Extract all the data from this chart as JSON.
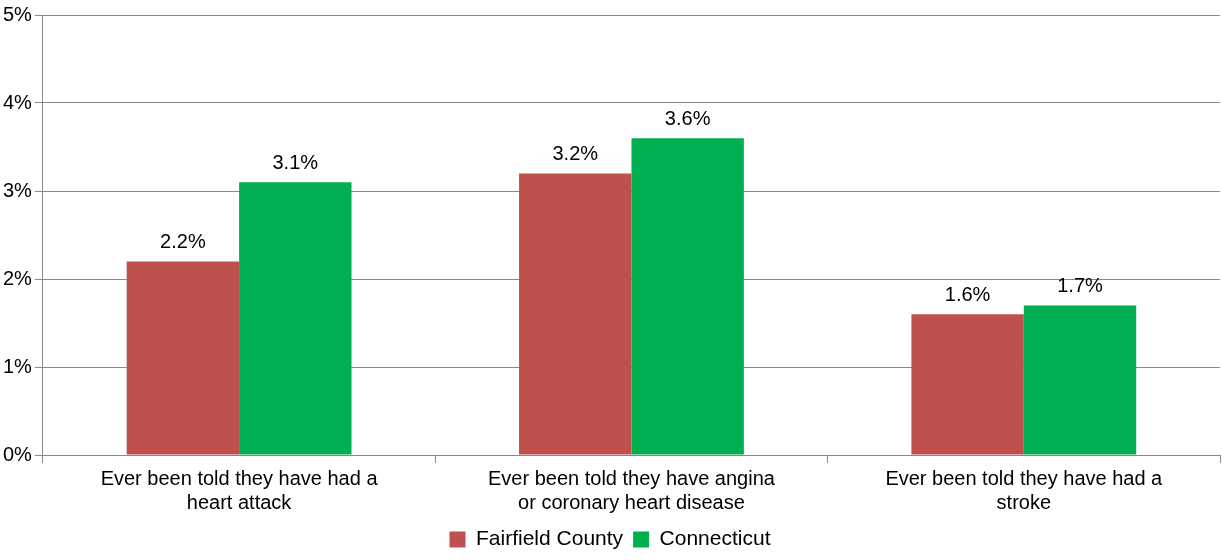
{
  "chart_data": {
    "type": "bar",
    "categories": [
      "Ever been told they have had a heart attack",
      "Ever been told they have angina or coronary heart disease",
      "Ever been told they have had a stroke"
    ],
    "series": [
      {
        "name": "Fairfield County",
        "color": "#c0504d",
        "values": [
          2.2,
          3.2,
          1.6
        ],
        "value_labels": [
          "2.2%",
          "3.2%",
          "1.6%"
        ]
      },
      {
        "name": "Connecticut",
        "color": "#00b050",
        "values": [
          3.1,
          3.6,
          1.7
        ],
        "value_labels": [
          "3.1%",
          "3.6%",
          "1.7%"
        ]
      }
    ],
    "ylim": [
      0,
      5
    ],
    "yticks": [
      {
        "value": 0,
        "label": "0%"
      },
      {
        "value": 1,
        "label": "1%"
      },
      {
        "value": 2,
        "label": "2%"
      },
      {
        "value": 3,
        "label": "3%"
      },
      {
        "value": 4,
        "label": "4%"
      },
      {
        "value": 5,
        "label": "5%"
      }
    ],
    "grid": "y",
    "legend": "bottom"
  }
}
